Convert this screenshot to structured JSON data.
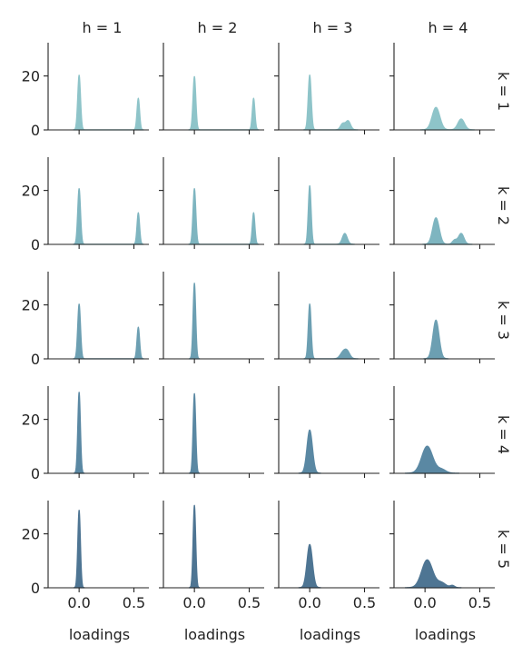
{
  "chart_data": {
    "type": "area",
    "kind": "small-multiples kernel density grid",
    "col_labels": [
      "h = 1",
      "h = 2",
      "h = 3",
      "h = 4"
    ],
    "row_labels": [
      "k = 1",
      "k = 2",
      "k = 3",
      "k = 4",
      "k = 5"
    ],
    "xlabel": "loadings",
    "xlim": [
      -0.2,
      0.62
    ],
    "ylim": [
      0,
      32
    ],
    "xticks": [
      0.0,
      0.5
    ],
    "xtick_labels": [
      "0.0",
      "0.5"
    ],
    "yticks": [
      0,
      20
    ],
    "ytick_labels": [
      "0",
      "20"
    ],
    "grid": false,
    "row_colors": [
      "#8ec4c9",
      "#7eb5c0",
      "#6c9fb2",
      "#5a88a3",
      "#4e7593"
    ],
    "panels": [
      [
        {
          "peaks": [
            {
              "mu": 0.0,
              "sd": 0.013,
              "h": 20.3
            },
            {
              "mu": 0.54,
              "sd": 0.012,
              "h": 11.7
            }
          ]
        },
        {
          "peaks": [
            {
              "mu": 0.0,
              "sd": 0.013,
              "h": 19.8
            },
            {
              "mu": 0.54,
              "sd": 0.012,
              "h": 11.7
            }
          ]
        },
        {
          "peaks": [
            {
              "mu": 0.0,
              "sd": 0.014,
              "h": 20.3
            },
            {
              "mu": 0.3,
              "sd": 0.02,
              "h": 2.2
            },
            {
              "mu": 0.35,
              "sd": 0.022,
              "h": 3.3
            }
          ]
        },
        {
          "peaks": [
            {
              "mu": 0.1,
              "sd": 0.035,
              "h": 8.3
            },
            {
              "mu": 0.33,
              "sd": 0.03,
              "h": 4.0
            }
          ]
        }
      ],
      [
        {
          "peaks": [
            {
              "mu": 0.0,
              "sd": 0.013,
              "h": 20.7
            },
            {
              "mu": 0.54,
              "sd": 0.012,
              "h": 11.7
            }
          ]
        },
        {
          "peaks": [
            {
              "mu": 0.0,
              "sd": 0.013,
              "h": 20.7
            },
            {
              "mu": 0.54,
              "sd": 0.012,
              "h": 11.7
            }
          ]
        },
        {
          "peaks": [
            {
              "mu": 0.0,
              "sd": 0.013,
              "h": 21.7
            },
            {
              "mu": 0.32,
              "sd": 0.022,
              "h": 4.0
            }
          ]
        },
        {
          "peaks": [
            {
              "mu": 0.1,
              "sd": 0.03,
              "h": 9.8
            },
            {
              "mu": 0.27,
              "sd": 0.02,
              "h": 1.5
            },
            {
              "mu": 0.33,
              "sd": 0.025,
              "h": 4.0
            }
          ]
        }
      ],
      [
        {
          "peaks": [
            {
              "mu": 0.0,
              "sd": 0.013,
              "h": 20.3
            },
            {
              "mu": 0.54,
              "sd": 0.012,
              "h": 11.7
            }
          ]
        },
        {
          "peaks": [
            {
              "mu": 0.0,
              "sd": 0.012,
              "h": 28.0
            }
          ]
        },
        {
          "peaks": [
            {
              "mu": 0.0,
              "sd": 0.013,
              "h": 20.3
            },
            {
              "mu": 0.3,
              "sd": 0.025,
              "h": 2.0
            },
            {
              "mu": 0.34,
              "sd": 0.025,
              "h": 2.8
            }
          ]
        },
        {
          "peaks": [
            {
              "mu": 0.1,
              "sd": 0.028,
              "h": 14.3
            }
          ]
        }
      ],
      [
        {
          "peaks": [
            {
              "mu": 0.0,
              "sd": 0.012,
              "h": 30.0
            }
          ]
        },
        {
          "peaks": [
            {
              "mu": 0.0,
              "sd": 0.012,
              "h": 29.5
            }
          ]
        },
        {
          "peaks": [
            {
              "mu": 0.0,
              "sd": 0.025,
              "h": 16.0
            }
          ]
        },
        {
          "peaks": [
            {
              "mu": 0.02,
              "sd": 0.05,
              "h": 10.0
            },
            {
              "mu": 0.15,
              "sd": 0.04,
              "h": 1.4
            }
          ]
        }
      ],
      [
        {
          "peaks": [
            {
              "mu": 0.0,
              "sd": 0.012,
              "h": 28.7
            }
          ]
        },
        {
          "peaks": [
            {
              "mu": 0.0,
              "sd": 0.012,
              "h": 30.5
            }
          ]
        },
        {
          "peaks": [
            {
              "mu": 0.0,
              "sd": 0.025,
              "h": 16.0
            }
          ]
        },
        {
          "peaks": [
            {
              "mu": 0.02,
              "sd": 0.05,
              "h": 10.3
            },
            {
              "mu": 0.15,
              "sd": 0.04,
              "h": 1.8
            },
            {
              "mu": 0.25,
              "sd": 0.02,
              "h": 0.8
            }
          ]
        }
      ]
    ]
  }
}
